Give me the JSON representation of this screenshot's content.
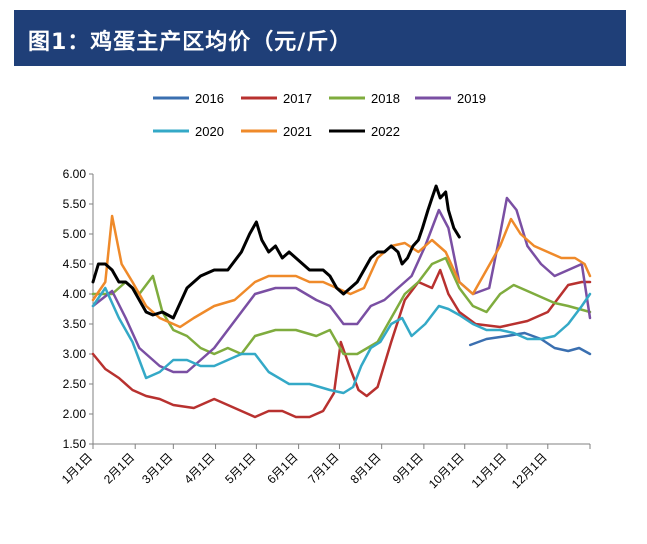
{
  "header": {
    "title": "图1：鸡蛋主产区均价（元/斤）"
  },
  "chart_data": {
    "type": "line",
    "title": "图1：鸡蛋主产区均价（元/斤）",
    "xlabel": "",
    "ylabel": "",
    "ylim": [
      1.5,
      6.0
    ],
    "yticks": [
      "6.00",
      "5.50",
      "5.00",
      "4.50",
      "4.00",
      "3.50",
      "3.00",
      "2.50",
      "2.00",
      "1.50"
    ],
    "grid": false,
    "legend_position": "top",
    "categories": [
      "1月1日",
      "2月1日",
      "3月1日",
      "4月1日",
      "5月1日",
      "6月1日",
      "7月1日",
      "8月1日",
      "9月1日",
      "10月1日",
      "11月1日",
      "12月1日"
    ],
    "x_day_of_year": [
      1,
      32,
      60,
      91,
      121,
      152,
      182,
      213,
      244,
      274,
      305,
      335
    ],
    "series": [
      {
        "name": "2016",
        "color": "#3a6fb0",
        "x": [
          278,
          290,
          305,
          318,
          330,
          340,
          350,
          358,
          366
        ],
        "y": [
          3.15,
          3.25,
          3.3,
          3.35,
          3.25,
          3.1,
          3.05,
          3.1,
          3.0
        ]
      },
      {
        "name": "2017",
        "color": "#b8312f",
        "x": [
          1,
          10,
          20,
          30,
          40,
          50,
          60,
          75,
          90,
          100,
          110,
          120,
          130,
          140,
          150,
          160,
          170,
          178,
          183,
          190,
          196,
          202,
          210,
          220,
          230,
          240,
          250,
          256,
          262,
          270,
          282,
          300,
          320,
          335,
          350,
          360,
          366
        ],
        "y": [
          3.0,
          2.75,
          2.6,
          2.4,
          2.3,
          2.25,
          2.15,
          2.1,
          2.25,
          2.15,
          2.05,
          1.95,
          2.05,
          2.05,
          1.95,
          1.95,
          2.05,
          2.35,
          3.2,
          2.75,
          2.4,
          2.3,
          2.45,
          3.2,
          3.9,
          4.2,
          4.1,
          4.4,
          4.0,
          3.7,
          3.5,
          3.45,
          3.55,
          3.7,
          4.15,
          4.2,
          4.2
        ]
      },
      {
        "name": "2018",
        "color": "#7fac3e",
        "x": [
          1,
          15,
          25,
          35,
          45,
          52,
          60,
          70,
          80,
          90,
          100,
          110,
          120,
          135,
          150,
          165,
          175,
          185,
          195,
          210,
          220,
          230,
          240,
          250,
          260,
          270,
          280,
          290,
          300,
          310,
          320,
          330,
          340,
          350,
          366
        ],
        "y": [
          4.0,
          4.0,
          4.2,
          4.0,
          4.3,
          3.7,
          3.4,
          3.3,
          3.1,
          3.0,
          3.1,
          3.0,
          3.3,
          3.4,
          3.4,
          3.3,
          3.4,
          3.0,
          3.0,
          3.2,
          3.6,
          4.0,
          4.2,
          4.5,
          4.6,
          4.1,
          3.8,
          3.7,
          4.0,
          4.15,
          4.05,
          3.95,
          3.85,
          3.8,
          3.7
        ]
      },
      {
        "name": "2019",
        "color": "#7a4fa3",
        "x": [
          1,
          15,
          25,
          35,
          50,
          60,
          70,
          80,
          90,
          100,
          110,
          120,
          135,
          150,
          165,
          175,
          185,
          195,
          205,
          215,
          225,
          235,
          245,
          255,
          262,
          270,
          280,
          292,
          300,
          305,
          312,
          320,
          330,
          340,
          350,
          360,
          366
        ],
        "y": [
          3.8,
          4.05,
          3.6,
          3.1,
          2.8,
          2.7,
          2.7,
          2.9,
          3.1,
          3.4,
          3.7,
          4.0,
          4.1,
          4.1,
          3.9,
          3.8,
          3.5,
          3.5,
          3.8,
          3.9,
          4.1,
          4.3,
          4.8,
          5.4,
          5.1,
          4.2,
          4.0,
          4.1,
          5.0,
          5.6,
          5.4,
          4.8,
          4.5,
          4.3,
          4.4,
          4.5,
          3.6
        ]
      },
      {
        "name": "2020",
        "color": "#34a9c7",
        "x": [
          1,
          10,
          20,
          30,
          40,
          50,
          60,
          70,
          80,
          90,
          100,
          110,
          120,
          130,
          145,
          160,
          175,
          185,
          192,
          198,
          205,
          212,
          220,
          228,
          235,
          245,
          255,
          262,
          270,
          280,
          290,
          300,
          310,
          320,
          330,
          340,
          350,
          360,
          366
        ],
        "y": [
          3.8,
          4.1,
          3.6,
          3.2,
          2.6,
          2.7,
          2.9,
          2.9,
          2.8,
          2.8,
          2.9,
          3.0,
          3.0,
          2.7,
          2.5,
          2.5,
          2.4,
          2.35,
          2.45,
          2.8,
          3.1,
          3.2,
          3.5,
          3.6,
          3.3,
          3.5,
          3.8,
          3.75,
          3.65,
          3.5,
          3.4,
          3.4,
          3.35,
          3.25,
          3.25,
          3.3,
          3.5,
          3.8,
          4.0
        ]
      },
      {
        "name": "2021",
        "color": "#ef8a2a",
        "x": [
          1,
          10,
          15,
          22,
          30,
          40,
          50,
          60,
          65,
          75,
          90,
          105,
          120,
          130,
          140,
          150,
          160,
          170,
          180,
          190,
          200,
          210,
          220,
          230,
          240,
          250,
          260,
          270,
          280,
          290,
          300,
          308,
          315,
          325,
          335,
          345,
          355,
          362,
          366
        ],
        "y": [
          3.9,
          4.2,
          5.3,
          4.5,
          4.2,
          3.8,
          3.6,
          3.5,
          3.45,
          3.6,
          3.8,
          3.9,
          4.2,
          4.3,
          4.3,
          4.3,
          4.2,
          4.2,
          4.1,
          4.0,
          4.1,
          4.6,
          4.8,
          4.85,
          4.7,
          4.9,
          4.7,
          4.2,
          4.0,
          4.4,
          4.8,
          5.25,
          5.0,
          4.8,
          4.7,
          4.6,
          4.6,
          4.5,
          4.3
        ]
      },
      {
        "name": "2022",
        "color": "#000000",
        "x": [
          1,
          5,
          10,
          15,
          20,
          25,
          30,
          40,
          45,
          52,
          60,
          70,
          80,
          90,
          100,
          110,
          116,
          121,
          125,
          130,
          135,
          140,
          145,
          150,
          155,
          160,
          165,
          170,
          175,
          180,
          185,
          190,
          195,
          200,
          205,
          210,
          215,
          220,
          225,
          228,
          232,
          236,
          240,
          243,
          247,
          250,
          253,
          256,
          260,
          262,
          266,
          270
        ],
        "y": [
          4.2,
          4.5,
          4.5,
          4.4,
          4.2,
          4.2,
          4.1,
          3.7,
          3.65,
          3.7,
          3.6,
          4.1,
          4.3,
          4.4,
          4.4,
          4.7,
          5.0,
          5.2,
          4.9,
          4.7,
          4.8,
          4.6,
          4.7,
          4.6,
          4.5,
          4.4,
          4.4,
          4.4,
          4.3,
          4.1,
          4.0,
          4.1,
          4.2,
          4.4,
          4.6,
          4.7,
          4.7,
          4.8,
          4.7,
          4.5,
          4.6,
          4.8,
          4.9,
          5.1,
          5.4,
          5.6,
          5.8,
          5.6,
          5.7,
          5.4,
          5.1,
          4.95
        ]
      }
    ]
  }
}
